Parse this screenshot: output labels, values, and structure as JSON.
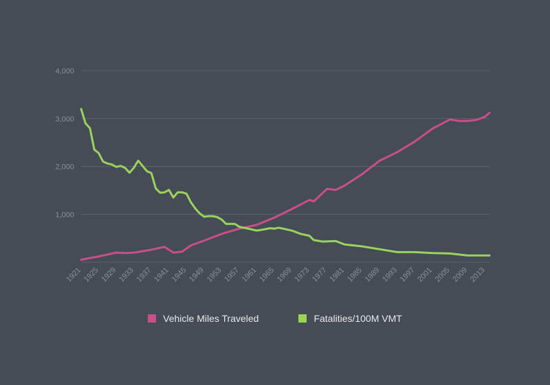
{
  "chart_data": {
    "type": "line",
    "title": "",
    "xlabel": "",
    "ylabel": "",
    "ylim": [
      0,
      4000
    ],
    "y_ticks": [
      1000,
      2000,
      3000,
      4000
    ],
    "y_tick_labels": [
      "1,000",
      "2,000",
      "3,000",
      "4,000"
    ],
    "xlim": [
      1921,
      2014
    ],
    "x_ticks": [
      1921,
      1925,
      1929,
      1933,
      1937,
      1941,
      1945,
      1949,
      1953,
      1957,
      1961,
      1965,
      1969,
      1973,
      1977,
      1981,
      1985,
      1989,
      1993,
      1997,
      2001,
      2005,
      2009,
      2013
    ],
    "grid": true,
    "legend": "bottom-center",
    "series": [
      {
        "name": "Vehicle Miles Traveled",
        "color": "#c94f8a",
        "x": [
          1921,
          1925,
          1929,
          1931,
          1933,
          1937,
          1940,
          1942,
          1944,
          1946,
          1949,
          1953,
          1957,
          1961,
          1965,
          1969,
          1973,
          1974,
          1977,
          1979,
          1981,
          1985,
          1989,
          1993,
          1997,
          2001,
          2005,
          2007,
          2009,
          2011,
          2013,
          2014
        ],
        "values": [
          50,
          120,
          200,
          190,
          200,
          260,
          320,
          200,
          220,
          350,
          450,
          590,
          700,
          780,
          930,
          1110,
          1300,
          1270,
          1530,
          1510,
          1600,
          1840,
          2120,
          2300,
          2520,
          2790,
          2980,
          2950,
          2950,
          2970,
          3040,
          3120
        ]
      },
      {
        "name": "Fatalities/100M VMT",
        "color": "#9bd35c",
        "x": [
          1921,
          1922,
          1923,
          1924,
          1925,
          1926,
          1927,
          1928,
          1929,
          1930,
          1931,
          1932,
          1933,
          1934,
          1935,
          1936,
          1937,
          1938,
          1939,
          1940,
          1941,
          1942,
          1943,
          1944,
          1945,
          1946,
          1947,
          1948,
          1949,
          1950,
          1951,
          1952,
          1953,
          1954,
          1955,
          1956,
          1957,
          1959,
          1961,
          1963,
          1964,
          1965,
          1966,
          1967,
          1969,
          1971,
          1973,
          1974,
          1976,
          1979,
          1981,
          1985,
          1989,
          1993,
          1997,
          2001,
          2005,
          2009,
          2013,
          2014
        ],
        "values": [
          3200,
          2900,
          2800,
          2350,
          2280,
          2100,
          2060,
          2040,
          1990,
          2010,
          1970,
          1870,
          1970,
          2120,
          2010,
          1900,
          1860,
          1540,
          1450,
          1460,
          1510,
          1350,
          1460,
          1460,
          1430,
          1250,
          1120,
          1020,
          950,
          960,
          960,
          940,
          890,
          800,
          800,
          800,
          740,
          700,
          660,
          690,
          710,
          700,
          720,
          700,
          660,
          590,
          550,
          460,
          430,
          440,
          370,
          330,
          270,
          210,
          210,
          190,
          180,
          140,
          140,
          140
        ]
      }
    ]
  }
}
